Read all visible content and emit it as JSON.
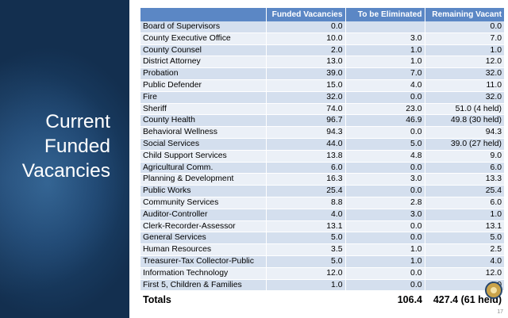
{
  "slide": {
    "title_lines": [
      "Current",
      "Funded",
      "Vacancies"
    ],
    "page_number": "17"
  },
  "table": {
    "columns": [
      "",
      "Funded Vacancies",
      "To be Eliminated",
      "Remaining Vacant"
    ],
    "rows": [
      [
        "Board of Supervisors",
        "0.0",
        "",
        "0.0"
      ],
      [
        "County Executive Office",
        "10.0",
        "3.0",
        "7.0"
      ],
      [
        "County Counsel",
        "2.0",
        "1.0",
        "1.0"
      ],
      [
        "District Attorney",
        "13.0",
        "1.0",
        "12.0"
      ],
      [
        "Probation",
        "39.0",
        "7.0",
        "32.0"
      ],
      [
        "Public Defender",
        "15.0",
        "4.0",
        "11.0"
      ],
      [
        "Fire",
        "32.0",
        "0.0",
        "32.0"
      ],
      [
        "Sheriff",
        "74.0",
        "23.0",
        "51.0 (4 held)"
      ],
      [
        "County Health",
        "96.7",
        "46.9",
        "49.8 (30 held)"
      ],
      [
        "Behavioral Wellness",
        "94.3",
        "0.0",
        "94.3"
      ],
      [
        "Social Services",
        "44.0",
        "5.0",
        "39.0 (27 held)"
      ],
      [
        "Child Support Services",
        "13.8",
        "4.8",
        "9.0"
      ],
      [
        "Agricultural Comm.",
        "6.0",
        "0.0",
        "6.0"
      ],
      [
        "Planning & Development",
        "16.3",
        "3.0",
        "13.3"
      ],
      [
        "Public Works",
        "25.4",
        "0.0",
        "25.4"
      ],
      [
        "Community Services",
        "8.8",
        "2.8",
        "6.0"
      ],
      [
        "Auditor-Controller",
        "4.0",
        "3.0",
        "1.0"
      ],
      [
        "Clerk-Recorder-Assessor",
        "13.1",
        "0.0",
        "13.1"
      ],
      [
        "General Services",
        "5.0",
        "0.0",
        "5.0"
      ],
      [
        "Human Resources",
        "3.5",
        "1.0",
        "2.5"
      ],
      [
        "Treasurer-Tax Collector-Public",
        "5.0",
        "1.0",
        "4.0"
      ],
      [
        "Information Technology",
        "12.0",
        "0.0",
        "12.0"
      ],
      [
        "First 5, Children & Families",
        "1.0",
        "0.0",
        "1.0"
      ]
    ],
    "totals": [
      "Totals",
      "",
      "106.4",
      "427.4 (61 held)"
    ]
  },
  "colors": {
    "header_bg": "#5b87c5",
    "row_odd": "#d4dfee",
    "row_even": "#ebf0f7",
    "left_panel": "#1f4772"
  }
}
